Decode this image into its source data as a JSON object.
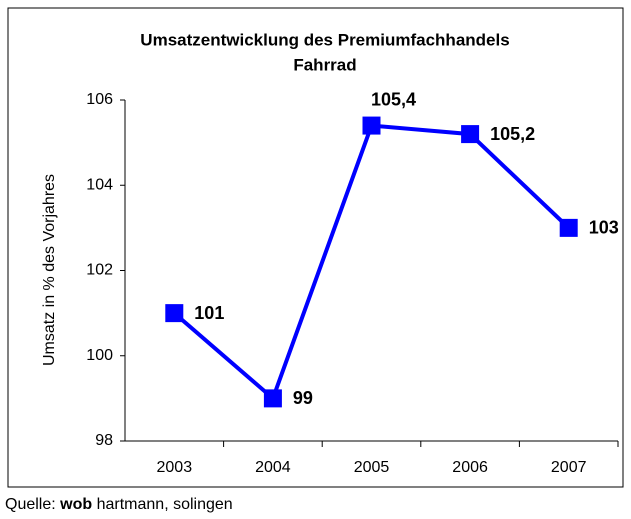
{
  "chart_data": {
    "type": "line",
    "title": [
      "Umsatzentwicklung des Premiumfachhandels",
      "Fahrrad"
    ],
    "y_label": "Umsatz in % des Vorjahres",
    "categories": [
      "2003",
      "2004",
      "2005",
      "2006",
      "2007"
    ],
    "series": [
      {
        "name": "Umsatz",
        "color": "#0000ff",
        "values": [
          101,
          99,
          105.4,
          105.2,
          103
        ],
        "value_labels": [
          "101",
          "99",
          "105,4",
          "105,2",
          "103"
        ]
      }
    ],
    "ylim": [
      98,
      106
    ],
    "yticks": [
      98,
      100,
      102,
      104,
      106
    ],
    "grid": false,
    "source": {
      "prefix": "Quelle:",
      "bold": "wob",
      "rest": "hartmann, solingen"
    }
  }
}
